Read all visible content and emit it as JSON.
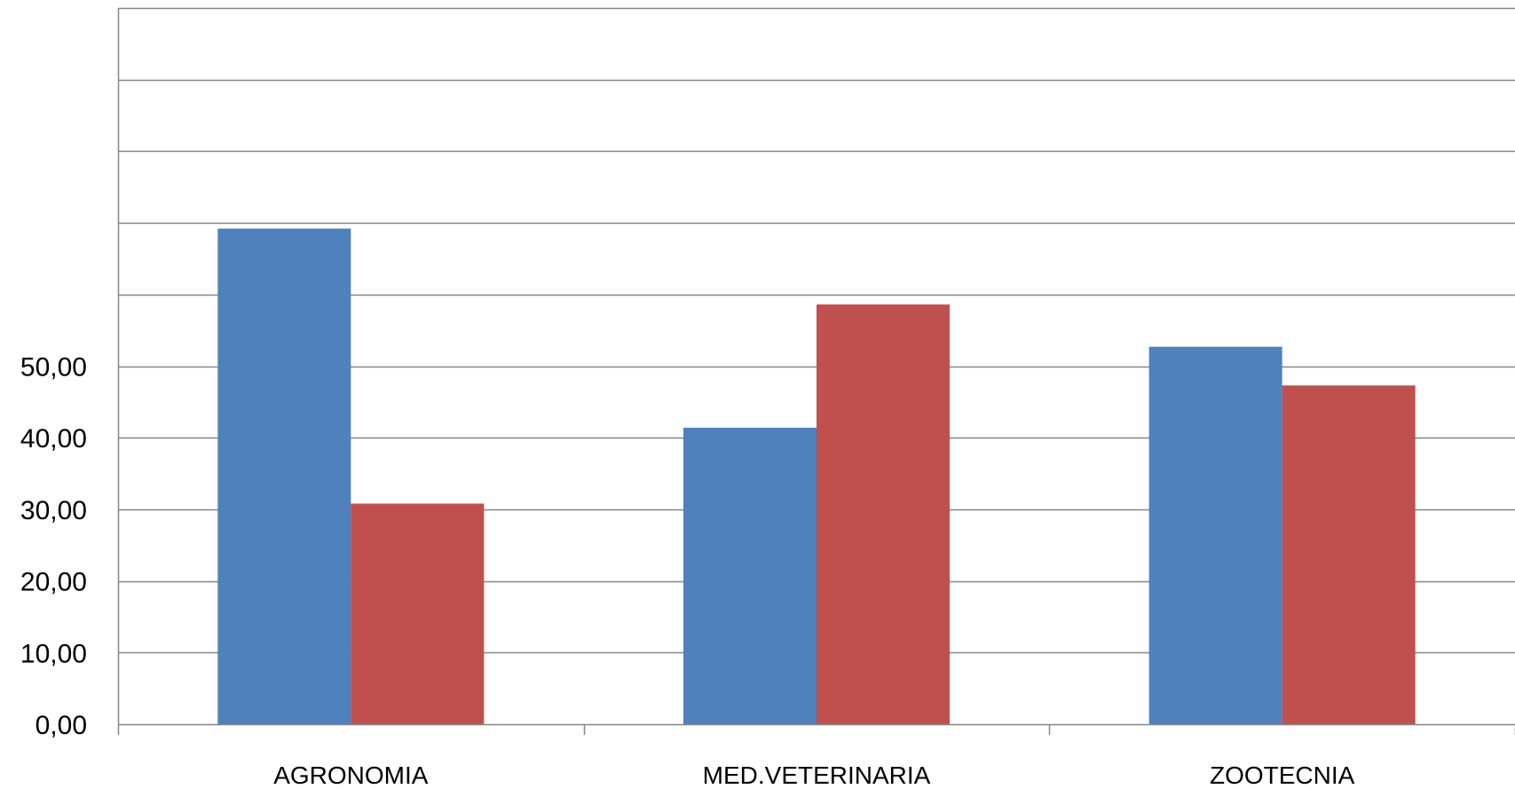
{
  "chart_data": {
    "type": "bar",
    "categories": [
      "AGRONOMIA",
      "MED.VETERINARIA",
      "ZOOTECNIA"
    ],
    "series": [
      {
        "values": [
          69.2,
          41.4,
          52.7
        ],
        "color": "#4F81BD"
      },
      {
        "values": [
          30.8,
          58.6,
          47.3
        ],
        "color": "#C0504D"
      }
    ],
    "ylim": [
      0,
      100
    ],
    "y_tick_step": 10,
    "y_tick_labels": [
      "0,00",
      "10,00",
      "20,00",
      "30,00",
      "40,00",
      "50,00"
    ],
    "grid": true,
    "legend": "none"
  }
}
